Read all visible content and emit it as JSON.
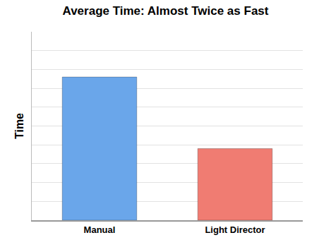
{
  "chart_data": {
    "type": "bar",
    "title": "Average Time: Almost Twice as Fast",
    "y_label": "Time",
    "categories": [
      "Manual",
      "Light Director"
    ],
    "values": [
      7.6,
      3.8
    ],
    "colors": [
      "#6aa6ea",
      "#f07c72"
    ],
    "ylim": [
      0,
      10
    ],
    "yticks": [
      0,
      1,
      2,
      3,
      4,
      5,
      6,
      7,
      8,
      9,
      10
    ],
    "grid": true,
    "tick_labels": "x"
  }
}
